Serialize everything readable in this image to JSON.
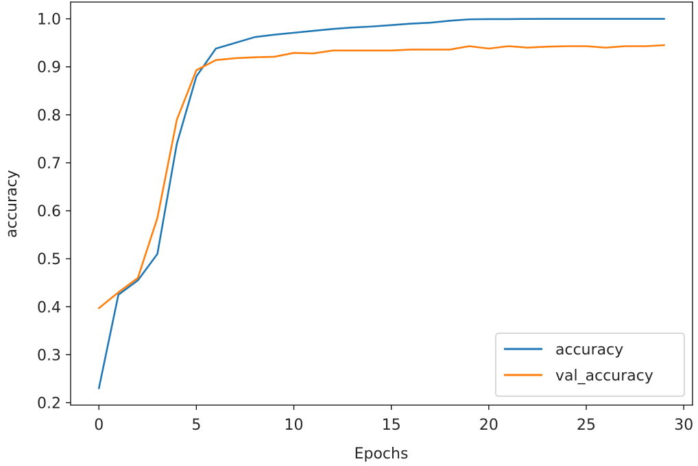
{
  "chart_data": {
    "type": "line",
    "title": "",
    "xlabel": "Epochs",
    "ylabel": "accuracy",
    "xlim": [
      -1.45,
      30.45
    ],
    "ylim": [
      0.195,
      1.035
    ],
    "x_ticks": [
      0,
      5,
      10,
      15,
      20,
      25,
      30
    ],
    "y_ticks": [
      0.2,
      0.3,
      0.4,
      0.5,
      0.6,
      0.7,
      0.8,
      0.9,
      1.0
    ],
    "y_tick_labels": [
      "0.2",
      "0.3",
      "0.4",
      "0.5",
      "0.6",
      "0.7",
      "0.8",
      "0.9",
      "1.0"
    ],
    "grid": false,
    "legend_position": "lower right",
    "x": [
      0,
      1,
      2,
      3,
      4,
      5,
      6,
      7,
      8,
      9,
      10,
      11,
      12,
      13,
      14,
      15,
      16,
      17,
      18,
      19,
      20,
      21,
      22,
      23,
      24,
      25,
      26,
      27,
      28,
      29
    ],
    "series": [
      {
        "name": "accuracy",
        "color": "#1f77b4",
        "values": [
          0.23,
          0.425,
          0.455,
          0.51,
          0.74,
          0.88,
          0.938,
          0.95,
          0.962,
          0.967,
          0.971,
          0.975,
          0.979,
          0.982,
          0.984,
          0.987,
          0.99,
          0.992,
          0.996,
          0.999,
          0.9995,
          0.9995,
          0.9998,
          1.0,
          1.0,
          1.0,
          1.0,
          1.0,
          1.0,
          1.0
        ]
      },
      {
        "name": "val_accuracy",
        "color": "#ff7f0e",
        "values": [
          0.397,
          0.43,
          0.46,
          0.585,
          0.79,
          0.893,
          0.914,
          0.918,
          0.92,
          0.921,
          0.929,
          0.928,
          0.934,
          0.934,
          0.934,
          0.934,
          0.936,
          0.936,
          0.936,
          0.943,
          0.938,
          0.943,
          0.94,
          0.942,
          0.943,
          0.943,
          0.94,
          0.943,
          0.943,
          0.945
        ]
      }
    ]
  }
}
